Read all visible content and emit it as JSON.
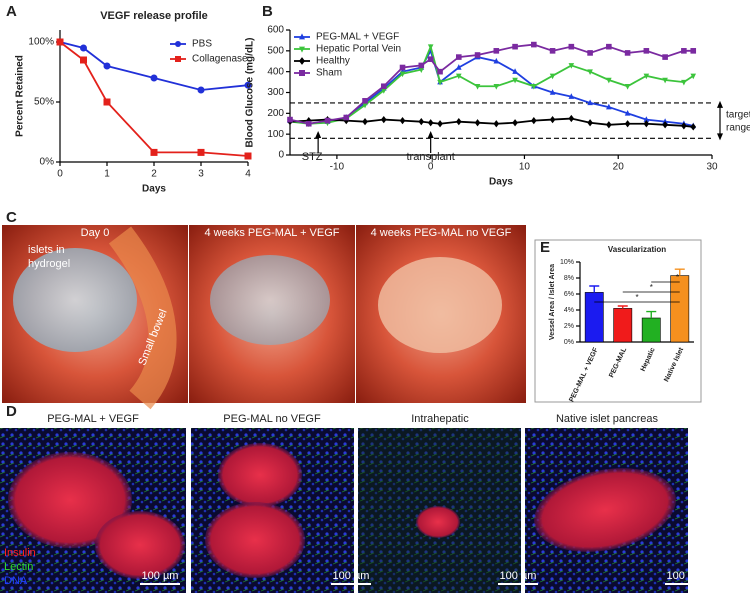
{
  "panel_labels": [
    "A",
    "B",
    "C",
    "D",
    "E"
  ],
  "chart_data": [
    {
      "type": "line",
      "title": "VEGF release profile",
      "xlabel": "Days",
      "ylabel": "Percent Retained",
      "x": [
        0,
        0.5,
        1,
        2,
        3,
        4
      ],
      "xlim": [
        0,
        4
      ],
      "xticks": [
        0,
        1,
        2,
        3,
        4
      ],
      "ylim": [
        0,
        110
      ],
      "yticks": [
        {
          "value": 0,
          "label": "0%"
        },
        {
          "value": 50,
          "label": "50%"
        },
        {
          "value": 100,
          "label": "100%"
        }
      ],
      "legend": "upper right",
      "series": [
        {
          "name": "PBS",
          "color": "#2130d8",
          "marker": "circle",
          "values": [
            100,
            95,
            80,
            70,
            60,
            64
          ]
        },
        {
          "name": "Collagenase",
          "color": "#e3211b",
          "marker": "square",
          "values": [
            100,
            85,
            50,
            8,
            8,
            5
          ]
        }
      ]
    },
    {
      "type": "line",
      "xlabel": "Days",
      "ylabel": "Blood Glucose (mg/dL)",
      "x": [
        -15,
        -13,
        -11,
        -9,
        -7,
        -5,
        -3,
        -1,
        0,
        1,
        3,
        5,
        7,
        9,
        11,
        13,
        15,
        17,
        19,
        21,
        23,
        25,
        27,
        28
      ],
      "xlim": [
        -15,
        30
      ],
      "xticks": [
        -10,
        0,
        10,
        20,
        30
      ],
      "ylim": [
        0,
        600
      ],
      "yticks": [
        0,
        100,
        200,
        300,
        400,
        500,
        600
      ],
      "legend": "upper left",
      "hlines": [
        80,
        250
      ],
      "annotations": [
        {
          "text": "STZ",
          "x": -12
        },
        {
          "text": "transplant",
          "x": 0
        }
      ],
      "range_label": [
        "target",
        "range"
      ],
      "series": [
        {
          "name": "PEG-MAL + VEGF",
          "color": "#1f3fe0",
          "marker": "triangle",
          "values": [
            165,
            150,
            160,
            180,
            250,
            320,
            400,
            420,
            500,
            350,
            420,
            470,
            450,
            400,
            330,
            300,
            280,
            250,
            230,
            200,
            170,
            160,
            150,
            140
          ]
        },
        {
          "name": "Hepatic Portal Vein",
          "color": "#3cc43c",
          "marker": "triangle-down",
          "values": [
            160,
            150,
            155,
            175,
            240,
            310,
            390,
            410,
            520,
            350,
            380,
            330,
            330,
            360,
            330,
            380,
            430,
            400,
            360,
            330,
            380,
            360,
            350,
            380
          ]
        },
        {
          "name": "Healthy",
          "color": "#000000",
          "marker": "diamond",
          "values": [
            160,
            165,
            170,
            165,
            160,
            170,
            165,
            160,
            155,
            150,
            160,
            155,
            150,
            155,
            165,
            170,
            175,
            155,
            145,
            150,
            150,
            145,
            140,
            135
          ]
        },
        {
          "name": "Sham",
          "color": "#7a2aa0",
          "marker": "square",
          "values": [
            170,
            150,
            165,
            180,
            260,
            330,
            420,
            430,
            460,
            400,
            470,
            480,
            500,
            520,
            530,
            500,
            520,
            490,
            520,
            490,
            500,
            470,
            500,
            500
          ]
        }
      ]
    },
    {
      "type": "bar",
      "title": "Vascularization",
      "ylabel": "Vessel Area / Islet Area",
      "categories": [
        "PEG-MAL + VEGF",
        "PEG-MAL",
        "Hepatic",
        "Native Islet"
      ],
      "values": [
        6.2,
        4.2,
        3.0,
        8.3
      ],
      "errors": [
        0.8,
        0.3,
        0.8,
        0.8
      ],
      "colors": [
        "#1b1bf0",
        "#f01b1b",
        "#22b022",
        "#f5901e"
      ],
      "ylim": [
        0,
        10
      ],
      "yticks": [
        {
          "value": 0,
          "label": "0%"
        },
        {
          "value": 2,
          "label": "2%"
        },
        {
          "value": 4,
          "label": "4%"
        },
        {
          "value": 6,
          "label": "6%"
        },
        {
          "value": 8,
          "label": "8%"
        },
        {
          "value": 10,
          "label": "10%"
        }
      ],
      "significance": [
        "*",
        "*",
        "*"
      ]
    }
  ],
  "photos": {
    "titles": [
      "Day 0",
      "4 weeks PEG-MAL + VEGF",
      "4 weeks PEG-MAL no VEGF"
    ],
    "islet_label": [
      "islets in",
      "hydrogel"
    ],
    "bowel_label": "Small bowel"
  },
  "micrographs": {
    "titles": [
      "PEG-MAL + VEGF",
      "PEG-MAL no VEGF",
      "Intrahepatic",
      "Native islet pancreas"
    ],
    "stains": [
      "Insulin",
      "Lectin",
      "DNA"
    ],
    "stain_colors": [
      "#ff2020",
      "#30e030",
      "#2040ff"
    ],
    "scale_bar": "100 µm"
  }
}
